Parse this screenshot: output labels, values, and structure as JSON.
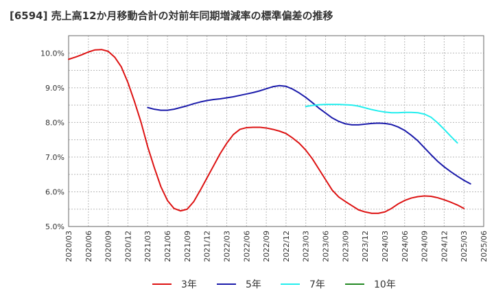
{
  "chart_data": {
    "type": "line",
    "title": "[6594]  売上高12か月移動合計の対前年同期増減率の標準偏差の推移",
    "xlabel": "",
    "ylabel": "",
    "ylim": [
      5.0,
      10.5
    ],
    "y_ticks": [
      5.0,
      6.0,
      7.0,
      8.0,
      9.0,
      10.0
    ],
    "y_tick_labels": [
      "5.0%",
      "6.0%",
      "7.0%",
      "8.0%",
      "9.0%",
      "10.0%"
    ],
    "x_tick_labels": [
      "2020/03",
      "2020/06",
      "2020/09",
      "2020/12",
      "2021/03",
      "2021/06",
      "2021/09",
      "2021/12",
      "2022/03",
      "2022/06",
      "2022/09",
      "2022/12",
      "2023/03",
      "2023/06",
      "2023/09",
      "2023/12",
      "2024/03",
      "2024/06",
      "2024/09",
      "2024/12",
      "2025/03",
      "2025/06"
    ],
    "grid": true,
    "legend_position": "bottom",
    "series": [
      {
        "name": "3年",
        "color": "#dd1111",
        "start_index": 0,
        "values": [
          9.82,
          9.88,
          9.95,
          10.03,
          10.09,
          10.1,
          10.05,
          9.88,
          9.6,
          9.15,
          8.6,
          8.0,
          7.3,
          6.7,
          6.15,
          5.75,
          5.52,
          5.45,
          5.5,
          5.72,
          6.05,
          6.4,
          6.75,
          7.1,
          7.4,
          7.65,
          7.8,
          7.85,
          7.86,
          7.86,
          7.84,
          7.8,
          7.75,
          7.68,
          7.55,
          7.4,
          7.2,
          6.95,
          6.65,
          6.35,
          6.05,
          5.85,
          5.72,
          5.6,
          5.48,
          5.42,
          5.38,
          5.38,
          5.42,
          5.52,
          5.65,
          5.75,
          5.82,
          5.86,
          5.88,
          5.87,
          5.83,
          5.77,
          5.7,
          5.62,
          5.52
        ]
      },
      {
        "name": "5年",
        "color": "#1a1aaa",
        "start_index": 12,
        "values": [
          8.43,
          8.38,
          8.35,
          8.35,
          8.38,
          8.43,
          8.48,
          8.54,
          8.59,
          8.63,
          8.66,
          8.68,
          8.71,
          8.74,
          8.78,
          8.82,
          8.86,
          8.91,
          8.97,
          9.03,
          9.06,
          9.04,
          8.96,
          8.85,
          8.72,
          8.57,
          8.41,
          8.27,
          8.13,
          8.03,
          7.96,
          7.93,
          7.93,
          7.95,
          7.97,
          7.98,
          7.97,
          7.94,
          7.87,
          7.77,
          7.63,
          7.47,
          7.27,
          7.07,
          6.88,
          6.72,
          6.58,
          6.45,
          6.33,
          6.23
        ]
      },
      {
        "name": "7年",
        "color": "#22eeee",
        "start_index": 36,
        "values": [
          8.46,
          8.49,
          8.51,
          8.52,
          8.52,
          8.52,
          8.51,
          8.5,
          8.47,
          8.42,
          8.37,
          8.33,
          8.3,
          8.28,
          8.28,
          8.29,
          8.29,
          8.28,
          8.24,
          8.15,
          7.99,
          7.8,
          7.6,
          7.41
        ]
      },
      {
        "name": "10年",
        "color": "#228822",
        "start_index": 0,
        "values": []
      }
    ]
  }
}
